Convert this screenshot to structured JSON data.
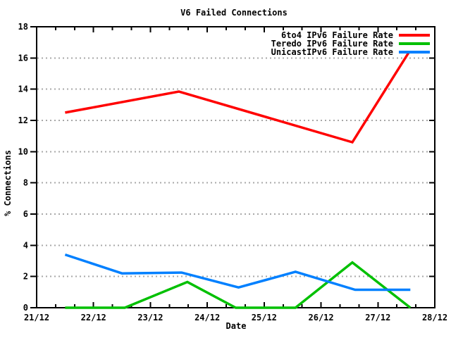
{
  "chart_data": {
    "type": "line",
    "title": "V6 Failed Connections",
    "xlabel": "Date",
    "ylabel": "% Connections",
    "x_unit": "day of December",
    "x_range_days": [
      21,
      28
    ],
    "x_tick_labels": [
      "21/12",
      "22/12",
      "23/12",
      "24/12",
      "25/12",
      "26/12",
      "27/12",
      "28/12"
    ],
    "x_minor_ticks_per_day": 3,
    "y_ticks": [
      0,
      2,
      4,
      6,
      8,
      10,
      12,
      14,
      16,
      18
    ],
    "ylim": [
      0,
      18
    ],
    "grid": "horizontal-dashed",
    "legend_position": "top-right-inside",
    "colors": {
      "background": "#ffffff",
      "border": "#000000",
      "grid": "#a8a8a8",
      "text": "#000000"
    },
    "series": [
      {
        "id": "6to4",
        "name": "6to4 IPv6 Failure Rate",
        "color": "#ff0000",
        "points": [
          [
            21.5,
            12.5
          ],
          [
            23.5,
            13.85
          ],
          [
            26.55,
            10.6
          ],
          [
            27.55,
            16.4
          ]
        ]
      },
      {
        "id": "teredo",
        "name": "Teredo IPv6 Failure Rate",
        "color": "#00c000",
        "points": [
          [
            21.5,
            0
          ],
          [
            22.55,
            0
          ],
          [
            23.65,
            1.65
          ],
          [
            24.5,
            0
          ],
          [
            25.55,
            0
          ],
          [
            26.55,
            2.9
          ],
          [
            27.57,
            0
          ]
        ]
      },
      {
        "id": "unicast",
        "name": "UnicastIPv6 Failure Rate",
        "color": "#0080ff",
        "points": [
          [
            21.5,
            3.4
          ],
          [
            22.5,
            2.2
          ],
          [
            23.55,
            2.25
          ],
          [
            24.55,
            1.3
          ],
          [
            25.55,
            2.3
          ],
          [
            26.6,
            1.15
          ],
          [
            27.57,
            1.15
          ]
        ]
      }
    ]
  }
}
